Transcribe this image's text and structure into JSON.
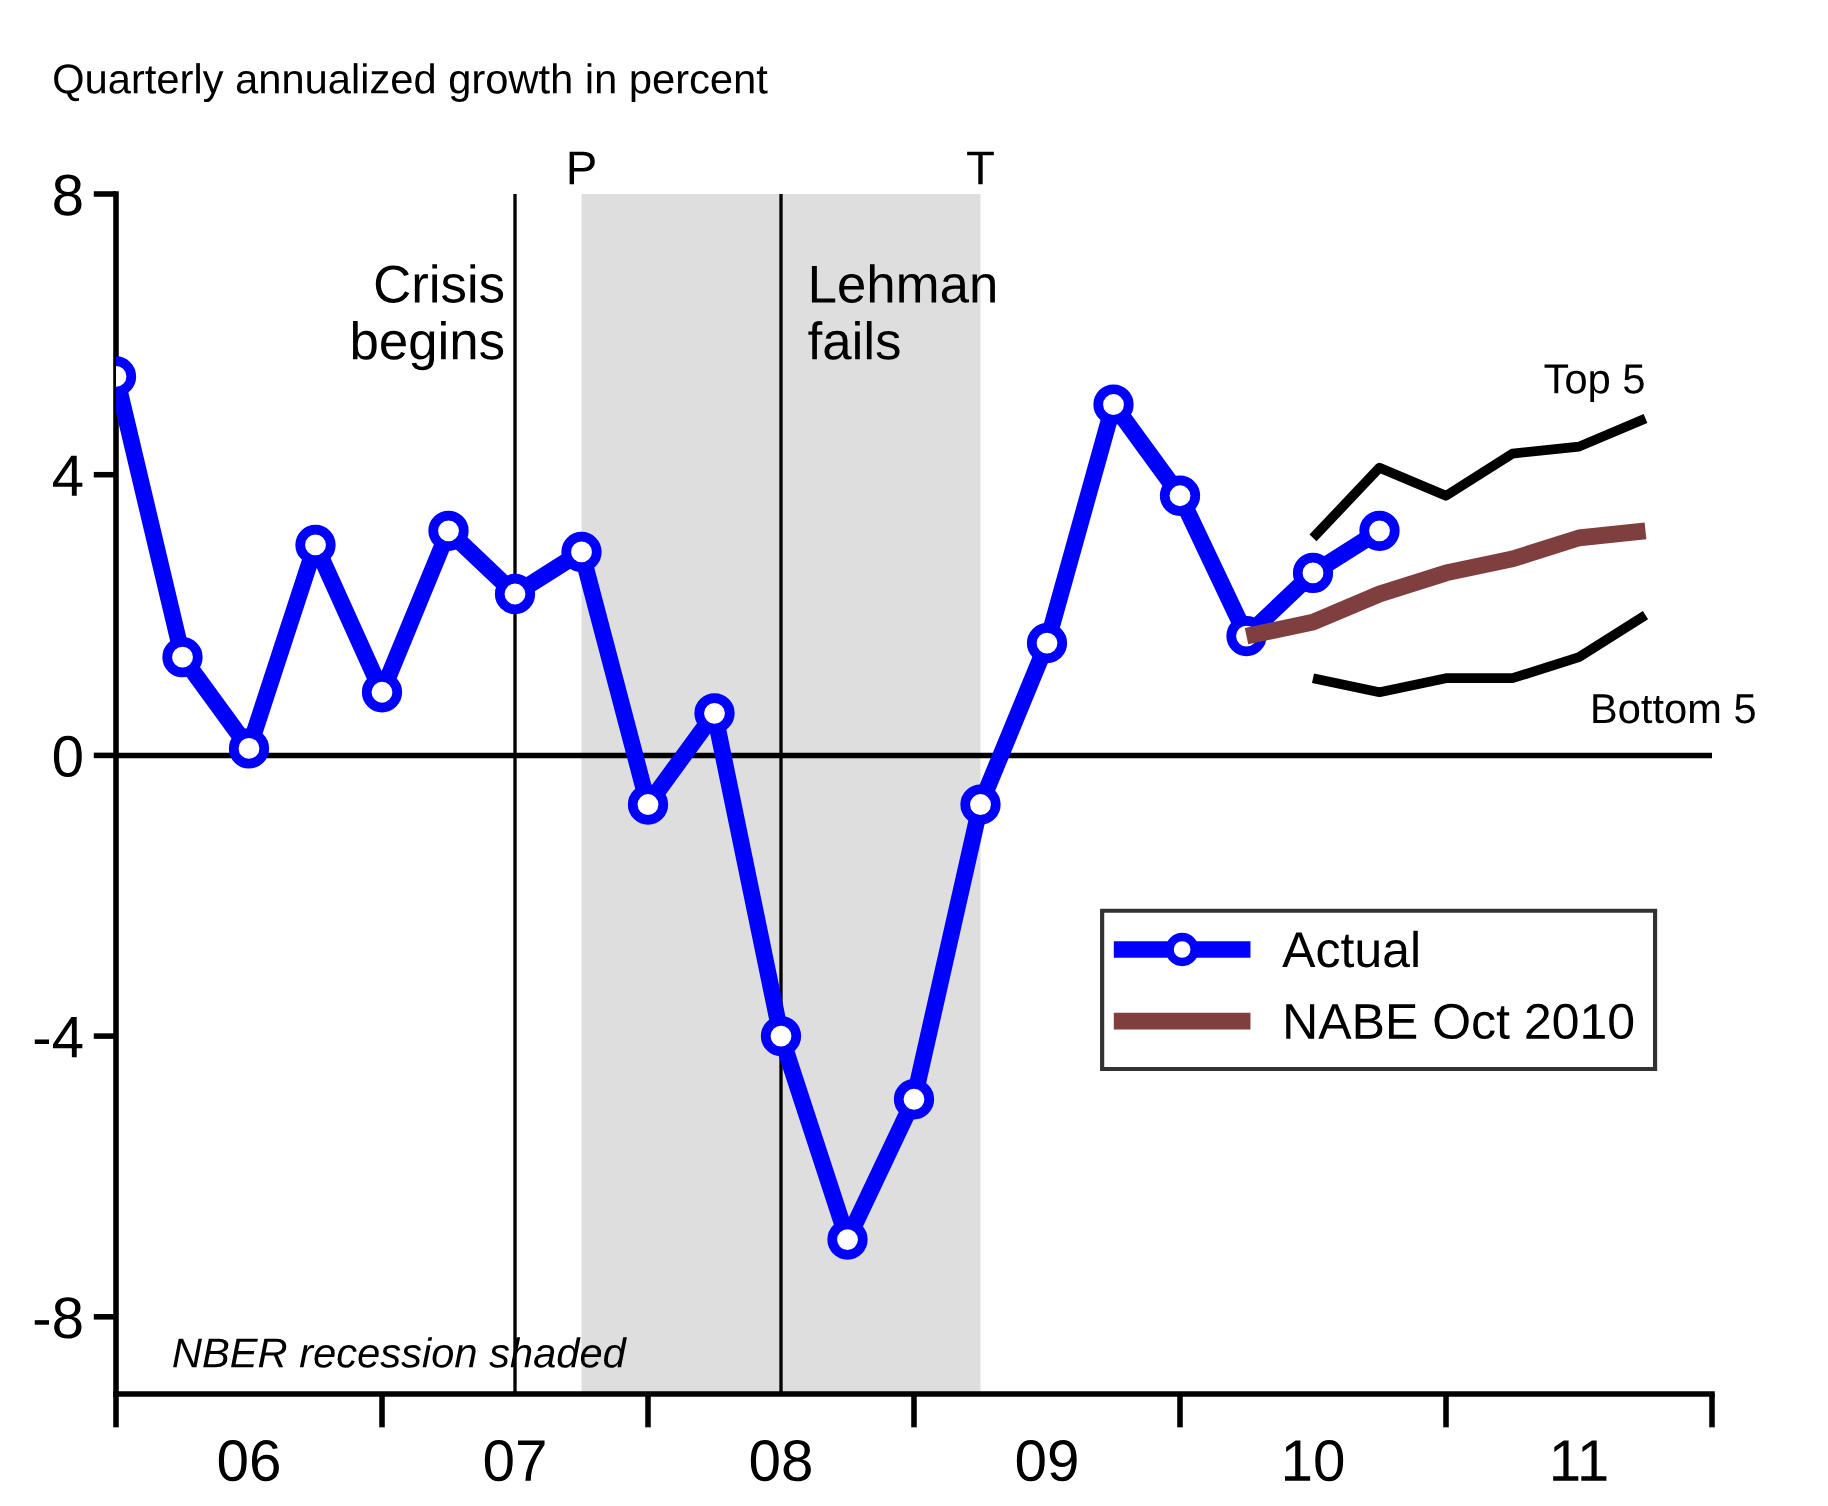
{
  "chart_data": {
    "type": "line",
    "title": "Quarterly annualized growth in percent",
    "categories": [
      null,
      null,
      "06",
      null,
      null,
      null,
      "07",
      null,
      null,
      null,
      "08",
      null,
      null,
      null,
      "09",
      null,
      null,
      null,
      "10",
      null,
      null,
      null,
      "11",
      null
    ],
    "series": [
      {
        "name": "Actual",
        "color": "#0000ff",
        "marker": "circle",
        "values": [
          5.4,
          1.4,
          0.1,
          3.0,
          0.9,
          3.2,
          2.3,
          2.9,
          -0.7,
          0.6,
          -4.0,
          -6.9,
          -4.9,
          -0.7,
          1.6,
          5.0,
          3.7,
          1.7,
          2.6,
          3.2,
          null,
          null,
          null,
          null
        ]
      },
      {
        "name": "NABE Oct 2010",
        "color": "#7f3f3f",
        "values": [
          null,
          null,
          null,
          null,
          null,
          null,
          null,
          null,
          null,
          null,
          null,
          null,
          null,
          null,
          null,
          null,
          null,
          1.7,
          1.9,
          2.3,
          2.6,
          2.8,
          3.1,
          3.2
        ]
      },
      {
        "color": "#000000",
        "values": [
          null,
          null,
          null,
          null,
          null,
          null,
          null,
          null,
          null,
          null,
          null,
          null,
          null,
          null,
          null,
          null,
          null,
          null,
          3.1,
          4.1,
          3.7,
          4.3,
          4.4,
          4.8
        ]
      },
      {
        "color": "#000000",
        "values": [
          null,
          null,
          null,
          null,
          null,
          null,
          null,
          null,
          null,
          null,
          null,
          null,
          null,
          null,
          null,
          null,
          null,
          null,
          1.1,
          0.9,
          1.1,
          1.1,
          1.4,
          2.0
        ]
      }
    ],
    "ylim": [
      -9.1,
      8
    ],
    "yticks": [
      {
        "value": -8,
        "label": "-8"
      },
      {
        "value": -4,
        "label": "-4"
      },
      0,
      4,
      8
    ],
    "ref_lines": [
      {
        "axis": "y",
        "value": 0
      },
      {
        "axis": "x",
        "value": "07",
        "label": "Crisis\nbegins"
      },
      {
        "axis": "x",
        "value": "08",
        "label": "Lehman\nfails"
      }
    ],
    "annotations": [
      "P",
      "T",
      "Top 5",
      "Bottom 5",
      "NBER recession shaded"
    ],
    "legend": "bottom right",
    "grid": false
  }
}
